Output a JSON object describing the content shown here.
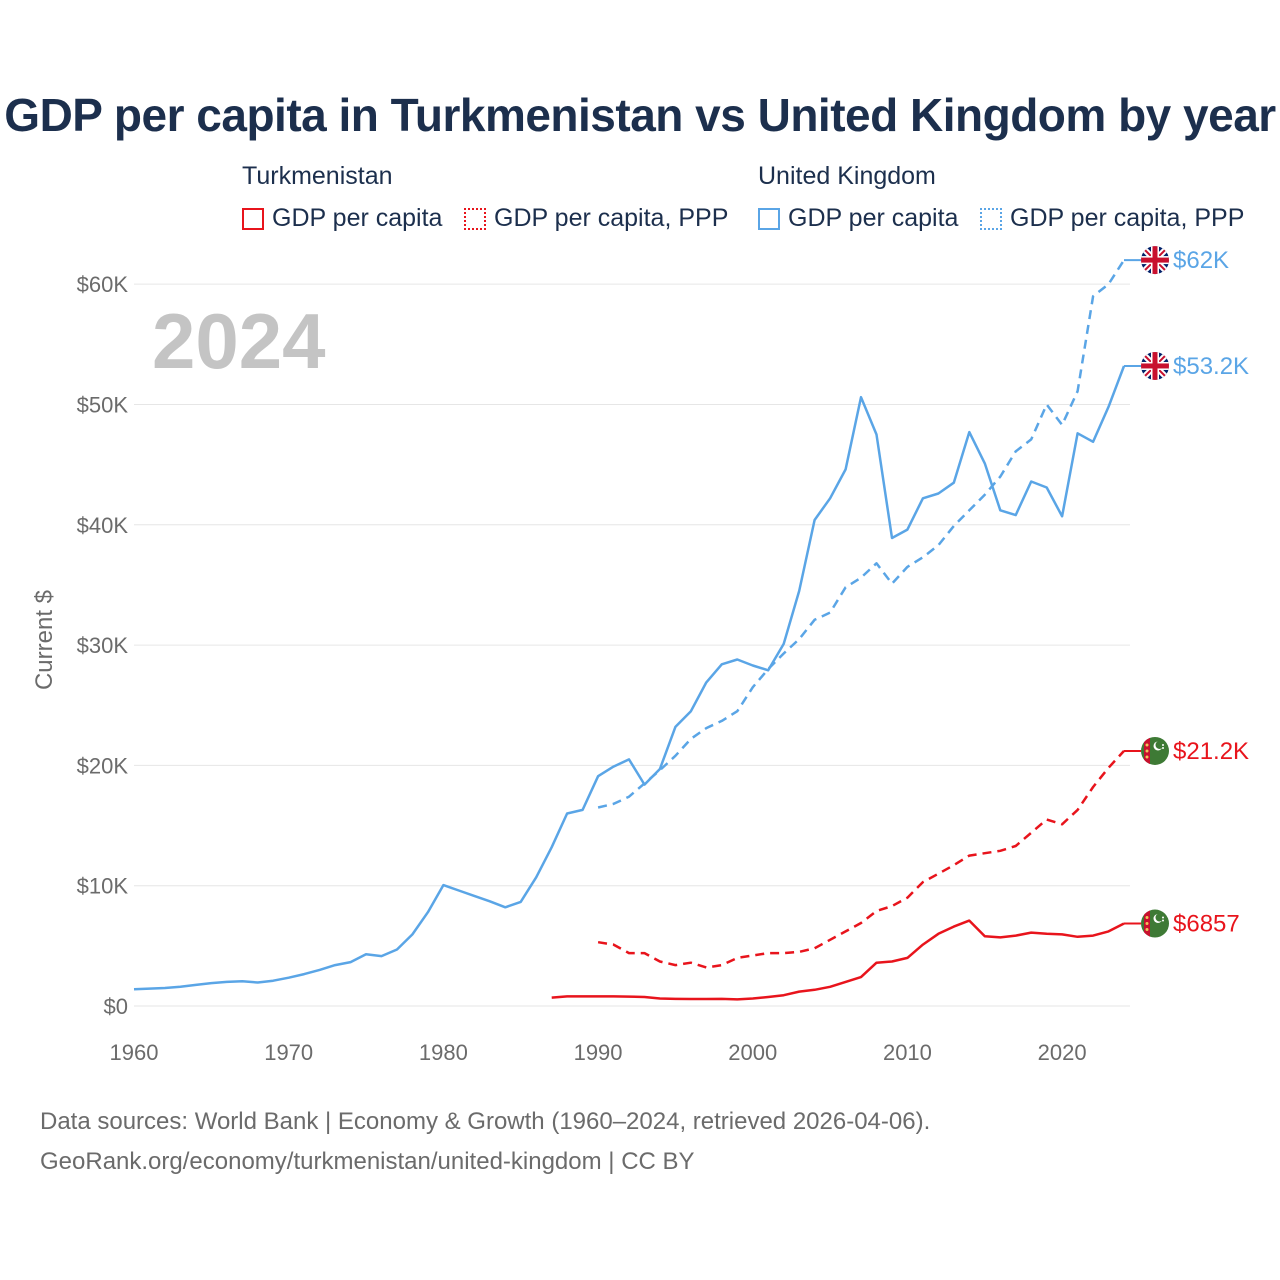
{
  "title": "GDP per capita in Turkmenistan vs United Kingdom by year",
  "legend": {
    "groups": [
      {
        "name": "Turkmenistan",
        "items": [
          "GDP per capita",
          "GDP per capita, PPP"
        ],
        "color": "#e8141c"
      },
      {
        "name": "United Kingdom",
        "items": [
          "GDP per capita",
          "GDP per capita, PPP"
        ],
        "color": "#5aa5e6"
      }
    ]
  },
  "year_label": "2024",
  "source": {
    "line1": "Data sources: World Bank | Economy & Growth (1960–2024, retrieved 2026-04-06).",
    "line2": "GeoRank.org/economy/turkmenistan/united-kingdom | CC BY"
  },
  "chart_data": {
    "type": "line",
    "title": "GDP per capita in Turkmenistan vs United Kingdom by year",
    "xlabel": "",
    "ylabel": "Current $",
    "xlim": [
      1960,
      2024
    ],
    "ylim": [
      0,
      65000
    ],
    "x_ticks": [
      1960,
      1970,
      1980,
      1990,
      2000,
      2010,
      2020
    ],
    "y_ticks": [
      0,
      10000,
      20000,
      30000,
      40000,
      50000,
      60000
    ],
    "y_tick_labels": [
      "$0",
      "$10K",
      "$20K",
      "$30K",
      "$40K",
      "$50K",
      "$60K"
    ],
    "grid": true,
    "series": [
      {
        "name": "United Kingdom GDP per capita",
        "country": "United Kingdom",
        "color": "#5aa5e6",
        "dashed": false,
        "end_label": "$53.2K",
        "x": [
          1960,
          1961,
          1962,
          1963,
          1964,
          1965,
          1966,
          1967,
          1968,
          1969,
          1970,
          1971,
          1972,
          1973,
          1974,
          1975,
          1976,
          1977,
          1978,
          1979,
          1980,
          1981,
          1982,
          1983,
          1984,
          1985,
          1986,
          1987,
          1988,
          1989,
          1990,
          1991,
          1992,
          1993,
          1994,
          1995,
          1996,
          1997,
          1998,
          1999,
          2000,
          2001,
          2002,
          2003,
          2004,
          2005,
          2006,
          2007,
          2008,
          2009,
          2010,
          2011,
          2012,
          2013,
          2014,
          2015,
          2016,
          2017,
          2018,
          2019,
          2020,
          2021,
          2022,
          2023,
          2024
        ],
        "values": [
          1400,
          1450,
          1500,
          1600,
          1750,
          1900,
          2000,
          2050,
          1950,
          2100,
          2350,
          2650,
          3000,
          3400,
          3650,
          4300,
          4150,
          4700,
          5950,
          7800,
          10050,
          9600,
          9150,
          8700,
          8200,
          8650,
          10700,
          13200,
          16000,
          16300,
          19100,
          19900,
          20500,
          18400,
          19700,
          23200,
          24500,
          26900,
          28400,
          28800,
          28300,
          27900,
          30100,
          34500,
          40400,
          42200,
          44600,
          50600,
          47500,
          38900,
          39600,
          42200,
          42600,
          43500,
          47700,
          45100,
          41200,
          40800,
          43600,
          43100,
          40700,
          47600,
          46900,
          49800,
          53200
        ]
      },
      {
        "name": "United Kingdom GDP per capita, PPP",
        "country": "United Kingdom",
        "color": "#5aa5e6",
        "dashed": true,
        "end_label": "$62K",
        "x": [
          1990,
          1991,
          1992,
          1993,
          1994,
          1995,
          1996,
          1997,
          1998,
          1999,
          2000,
          2001,
          2002,
          2003,
          2004,
          2005,
          2006,
          2007,
          2008,
          2009,
          2010,
          2011,
          2012,
          2013,
          2014,
          2015,
          2016,
          2017,
          2018,
          2019,
          2020,
          2021,
          2022,
          2023,
          2024
        ],
        "values": [
          16500,
          16800,
          17400,
          18500,
          19600,
          20800,
          22200,
          23100,
          23700,
          24500,
          26500,
          28000,
          29300,
          30500,
          32100,
          32700,
          34800,
          35600,
          36800,
          35100,
          36500,
          37300,
          38300,
          39900,
          41200,
          42500,
          44000,
          46100,
          47100,
          50000,
          48300,
          51100,
          59000,
          60000,
          62000
        ]
      },
      {
        "name": "Turkmenistan GDP per capita",
        "country": "Turkmenistan",
        "color": "#e8141c",
        "dashed": false,
        "end_label": "$6857",
        "x": [
          1987,
          1988,
          1989,
          1990,
          1991,
          1992,
          1993,
          1994,
          1995,
          1996,
          1997,
          1998,
          1999,
          2000,
          2001,
          2002,
          2003,
          2004,
          2005,
          2006,
          2007,
          2008,
          2009,
          2010,
          2011,
          2012,
          2013,
          2014,
          2015,
          2016,
          2017,
          2018,
          2019,
          2020,
          2021,
          2022,
          2023,
          2024
        ],
        "values": [
          700,
          800,
          800,
          800,
          800,
          780,
          750,
          620,
          590,
          580,
          580,
          590,
          550,
          620,
          750,
          900,
          1200,
          1350,
          1600,
          2000,
          2400,
          3600,
          3700,
          4000,
          5100,
          6000,
          6600,
          7100,
          5800,
          5700,
          5850,
          6100,
          6000,
          5950,
          5750,
          5850,
          6200,
          6857
        ]
      },
      {
        "name": "Turkmenistan GDP per capita, PPP",
        "country": "Turkmenistan",
        "color": "#e8141c",
        "dashed": true,
        "end_label": "$21.2K",
        "x": [
          1990,
          1991,
          1992,
          1993,
          1994,
          1995,
          1996,
          1997,
          1998,
          1999,
          2000,
          2001,
          2002,
          2003,
          2004,
          2005,
          2006,
          2007,
          2008,
          2009,
          2010,
          2011,
          2012,
          2013,
          2014,
          2015,
          2016,
          2017,
          2018,
          2019,
          2020,
          2021,
          2022,
          2023,
          2024
        ],
        "values": [
          5300,
          5100,
          4400,
          4400,
          3700,
          3400,
          3600,
          3200,
          3400,
          4000,
          4200,
          4400,
          4400,
          4500,
          4800,
          5500,
          6200,
          6900,
          7900,
          8300,
          9000,
          10300,
          11000,
          11700,
          12500,
          12700,
          12900,
          13300,
          14400,
          15500,
          15100,
          16300,
          18200,
          19800,
          21200
        ]
      }
    ]
  }
}
